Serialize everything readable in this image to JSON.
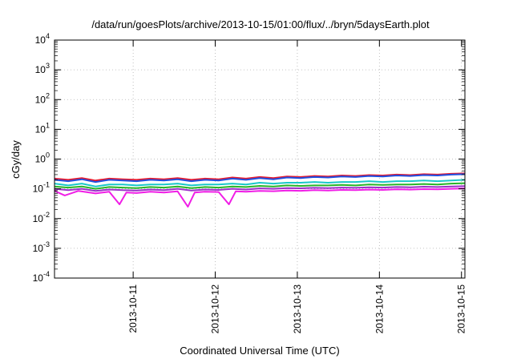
{
  "chart_data": {
    "type": "line",
    "title": "/data/run/goesPlots/archive/2013-10-15/01:00/flux/../bryn/5daysEarth.plot",
    "xlabel": "Coordinated Universal Time (UTC)",
    "ylabel": "cGy/day",
    "yscale": "log",
    "ylim": [
      0.0001,
      10000
    ],
    "xlim": [
      "2013-10-10T01:00",
      "2013-10-15T01:00"
    ],
    "grid": true,
    "x_ticks": [
      "2013-10-11",
      "2013-10-12",
      "2013-10-13",
      "2013-10-14",
      "2013-10-15"
    ],
    "y_ticks": [
      {
        "value": 0.0001,
        "base": "10",
        "exp": "-4"
      },
      {
        "value": 0.001,
        "base": "10",
        "exp": "-3"
      },
      {
        "value": 0.01,
        "base": "10",
        "exp": "-2"
      },
      {
        "value": 0.1,
        "base": "10",
        "exp": "-1"
      },
      {
        "value": 1,
        "base": "10",
        "exp": "0"
      },
      {
        "value": 10,
        "base": "10",
        "exp": "1"
      },
      {
        "value": 100,
        "base": "10",
        "exp": "2"
      },
      {
        "value": 1000,
        "base": "10",
        "exp": "3"
      },
      {
        "value": 10000,
        "base": "10",
        "exp": "4"
      }
    ],
    "series": [
      {
        "color": "#e8192c",
        "values": [
          [
            "2013-10-10T01:00",
            0.22
          ],
          [
            "2013-10-10T05:00",
            0.2
          ],
          [
            "2013-10-10T09:00",
            0.23
          ],
          [
            "2013-10-10T13:00",
            0.19
          ],
          [
            "2013-10-10T17:00",
            0.22
          ],
          [
            "2013-10-10T21:00",
            0.21
          ],
          [
            "2013-10-11T01:00",
            0.2
          ],
          [
            "2013-10-11T05:00",
            0.22
          ],
          [
            "2013-10-11T09:00",
            0.21
          ],
          [
            "2013-10-11T13:00",
            0.23
          ],
          [
            "2013-10-11T17:00",
            0.2
          ],
          [
            "2013-10-11T21:00",
            0.22
          ],
          [
            "2013-10-12T01:00",
            0.21
          ],
          [
            "2013-10-12T05:00",
            0.24
          ],
          [
            "2013-10-12T09:00",
            0.22
          ],
          [
            "2013-10-12T13:00",
            0.25
          ],
          [
            "2013-10-12T17:00",
            0.23
          ],
          [
            "2013-10-12T21:00",
            0.26
          ],
          [
            "2013-10-13T01:00",
            0.25
          ],
          [
            "2013-10-13T05:00",
            0.27
          ],
          [
            "2013-10-13T09:00",
            0.26
          ],
          [
            "2013-10-13T13:00",
            0.28
          ],
          [
            "2013-10-13T17:00",
            0.27
          ],
          [
            "2013-10-13T21:00",
            0.29
          ],
          [
            "2013-10-14T01:00",
            0.28
          ],
          [
            "2013-10-14T05:00",
            0.3
          ],
          [
            "2013-10-14T09:00",
            0.29
          ],
          [
            "2013-10-14T13:00",
            0.31
          ],
          [
            "2013-10-14T17:00",
            0.3
          ],
          [
            "2013-10-14T21:00",
            0.32
          ],
          [
            "2013-10-15T01:00",
            0.33
          ]
        ]
      },
      {
        "color": "#1f4fe0",
        "values": [
          [
            "2013-10-10T01:00",
            0.2
          ],
          [
            "2013-10-10T05:00",
            0.18
          ],
          [
            "2013-10-10T09:00",
            0.21
          ],
          [
            "2013-10-10T13:00",
            0.17
          ],
          [
            "2013-10-10T17:00",
            0.2
          ],
          [
            "2013-10-10T21:00",
            0.19
          ],
          [
            "2013-10-11T01:00",
            0.18
          ],
          [
            "2013-10-11T05:00",
            0.2
          ],
          [
            "2013-10-11T09:00",
            0.19
          ],
          [
            "2013-10-11T13:00",
            0.21
          ],
          [
            "2013-10-11T17:00",
            0.18
          ],
          [
            "2013-10-11T21:00",
            0.2
          ],
          [
            "2013-10-12T01:00",
            0.19
          ],
          [
            "2013-10-12T05:00",
            0.22
          ],
          [
            "2013-10-12T09:00",
            0.2
          ],
          [
            "2013-10-12T13:00",
            0.23
          ],
          [
            "2013-10-12T17:00",
            0.21
          ],
          [
            "2013-10-12T21:00",
            0.24
          ],
          [
            "2013-10-13T01:00",
            0.23
          ],
          [
            "2013-10-13T05:00",
            0.25
          ],
          [
            "2013-10-13T09:00",
            0.24
          ],
          [
            "2013-10-13T13:00",
            0.26
          ],
          [
            "2013-10-13T17:00",
            0.25
          ],
          [
            "2013-10-13T21:00",
            0.27
          ],
          [
            "2013-10-14T01:00",
            0.26
          ],
          [
            "2013-10-14T05:00",
            0.28
          ],
          [
            "2013-10-14T09:00",
            0.27
          ],
          [
            "2013-10-14T13:00",
            0.29
          ],
          [
            "2013-10-14T17:00",
            0.28
          ],
          [
            "2013-10-14T21:00",
            0.3
          ],
          [
            "2013-10-15T01:00",
            0.31
          ]
        ]
      },
      {
        "color": "#19c8c8",
        "values": [
          [
            "2013-10-10T01:00",
            0.15
          ],
          [
            "2013-10-10T05:00",
            0.13
          ],
          [
            "2013-10-10T09:00",
            0.15
          ],
          [
            "2013-10-10T13:00",
            0.12
          ],
          [
            "2013-10-10T17:00",
            0.14
          ],
          [
            "2013-10-10T21:00",
            0.14
          ],
          [
            "2013-10-11T01:00",
            0.13
          ],
          [
            "2013-10-11T05:00",
            0.14
          ],
          [
            "2013-10-11T09:00",
            0.14
          ],
          [
            "2013-10-11T13:00",
            0.15
          ],
          [
            "2013-10-11T17:00",
            0.13
          ],
          [
            "2013-10-11T21:00",
            0.14
          ],
          [
            "2013-10-12T01:00",
            0.14
          ],
          [
            "2013-10-12T05:00",
            0.15
          ],
          [
            "2013-10-12T09:00",
            0.14
          ],
          [
            "2013-10-12T13:00",
            0.16
          ],
          [
            "2013-10-12T17:00",
            0.15
          ],
          [
            "2013-10-12T21:00",
            0.16
          ],
          [
            "2013-10-13T01:00",
            0.16
          ],
          [
            "2013-10-13T05:00",
            0.17
          ],
          [
            "2013-10-13T09:00",
            0.16
          ],
          [
            "2013-10-13T13:00",
            0.17
          ],
          [
            "2013-10-13T17:00",
            0.17
          ],
          [
            "2013-10-13T21:00",
            0.18
          ],
          [
            "2013-10-14T01:00",
            0.17
          ],
          [
            "2013-10-14T05:00",
            0.18
          ],
          [
            "2013-10-14T09:00",
            0.18
          ],
          [
            "2013-10-14T13:00",
            0.19
          ],
          [
            "2013-10-14T17:00",
            0.18
          ],
          [
            "2013-10-14T21:00",
            0.19
          ],
          [
            "2013-10-15T01:00",
            0.2
          ]
        ]
      },
      {
        "color": "#28b428",
        "values": [
          [
            "2013-10-10T01:00",
            0.12
          ],
          [
            "2013-10-10T05:00",
            0.11
          ],
          [
            "2013-10-10T09:00",
            0.12
          ],
          [
            "2013-10-10T13:00",
            0.1
          ],
          [
            "2013-10-10T17:00",
            0.115
          ],
          [
            "2013-10-10T21:00",
            0.11
          ],
          [
            "2013-10-11T01:00",
            0.105
          ],
          [
            "2013-10-11T05:00",
            0.115
          ],
          [
            "2013-10-11T09:00",
            0.11
          ],
          [
            "2013-10-11T13:00",
            0.12
          ],
          [
            "2013-10-11T17:00",
            0.105
          ],
          [
            "2013-10-11T21:00",
            0.115
          ],
          [
            "2013-10-12T01:00",
            0.11
          ],
          [
            "2013-10-12T05:00",
            0.12
          ],
          [
            "2013-10-12T09:00",
            0.115
          ],
          [
            "2013-10-12T13:00",
            0.125
          ],
          [
            "2013-10-12T17:00",
            0.12
          ],
          [
            "2013-10-12T21:00",
            0.13
          ],
          [
            "2013-10-13T01:00",
            0.125
          ],
          [
            "2013-10-13T05:00",
            0.13
          ],
          [
            "2013-10-13T09:00",
            0.13
          ],
          [
            "2013-10-13T13:00",
            0.135
          ],
          [
            "2013-10-13T17:00",
            0.13
          ],
          [
            "2013-10-13T21:00",
            0.14
          ],
          [
            "2013-10-14T01:00",
            0.135
          ],
          [
            "2013-10-14T05:00",
            0.14
          ],
          [
            "2013-10-14T09:00",
            0.14
          ],
          [
            "2013-10-14T13:00",
            0.145
          ],
          [
            "2013-10-14T17:00",
            0.14
          ],
          [
            "2013-10-14T21:00",
            0.15
          ],
          [
            "2013-10-15T01:00",
            0.155
          ]
        ]
      },
      {
        "color": "#9b2fc8",
        "values": [
          [
            "2013-10-10T01:00",
            0.1
          ],
          [
            "2013-10-10T05:00",
            0.09
          ],
          [
            "2013-10-10T09:00",
            0.1
          ],
          [
            "2013-10-10T13:00",
            0.085
          ],
          [
            "2013-10-10T17:00",
            0.095
          ],
          [
            "2013-10-10T21:00",
            0.09
          ],
          [
            "2013-10-11T01:00",
            0.088
          ],
          [
            "2013-10-11T05:00",
            0.095
          ],
          [
            "2013-10-11T09:00",
            0.09
          ],
          [
            "2013-10-11T13:00",
            0.1
          ],
          [
            "2013-10-11T17:00",
            0.088
          ],
          [
            "2013-10-11T21:00",
            0.095
          ],
          [
            "2013-10-12T01:00",
            0.092
          ],
          [
            "2013-10-12T05:00",
            0.1
          ],
          [
            "2013-10-12T09:00",
            0.095
          ],
          [
            "2013-10-12T13:00",
            0.103
          ],
          [
            "2013-10-12T17:00",
            0.1
          ],
          [
            "2013-10-12T21:00",
            0.106
          ],
          [
            "2013-10-13T01:00",
            0.104
          ],
          [
            "2013-10-13T05:00",
            0.108
          ],
          [
            "2013-10-13T09:00",
            0.106
          ],
          [
            "2013-10-13T13:00",
            0.11
          ],
          [
            "2013-10-13T17:00",
            0.108
          ],
          [
            "2013-10-13T21:00",
            0.113
          ],
          [
            "2013-10-14T01:00",
            0.11
          ],
          [
            "2013-10-14T05:00",
            0.115
          ],
          [
            "2013-10-14T09:00",
            0.113
          ],
          [
            "2013-10-14T13:00",
            0.118
          ],
          [
            "2013-10-14T17:00",
            0.115
          ],
          [
            "2013-10-14T21:00",
            0.12
          ],
          [
            "2013-10-15T01:00",
            0.124
          ]
        ]
      },
      {
        "color": "#f01ee6",
        "values": [
          [
            "2013-10-10T01:00",
            0.085
          ],
          [
            "2013-10-10T04:00",
            0.06
          ],
          [
            "2013-10-10T08:00",
            0.085
          ],
          [
            "2013-10-10T13:00",
            0.07
          ],
          [
            "2013-10-10T17:00",
            0.08
          ],
          [
            "2013-10-10T20:00",
            0.03
          ],
          [
            "2013-10-10T22:00",
            0.075
          ],
          [
            "2013-10-11T01:00",
            0.072
          ],
          [
            "2013-10-11T05:00",
            0.08
          ],
          [
            "2013-10-11T09:00",
            0.075
          ],
          [
            "2013-10-11T13:00",
            0.082
          ],
          [
            "2013-10-11T16:00",
            0.025
          ],
          [
            "2013-10-11T18:00",
            0.075
          ],
          [
            "2013-10-11T21:00",
            0.08
          ],
          [
            "2013-10-12T01:00",
            0.078
          ],
          [
            "2013-10-12T04:00",
            0.03
          ],
          [
            "2013-10-12T06:00",
            0.082
          ],
          [
            "2013-10-12T09:00",
            0.08
          ],
          [
            "2013-10-12T13:00",
            0.085
          ],
          [
            "2013-10-12T17:00",
            0.083
          ],
          [
            "2013-10-12T21:00",
            0.088
          ],
          [
            "2013-10-13T01:00",
            0.086
          ],
          [
            "2013-10-13T05:00",
            0.09
          ],
          [
            "2013-10-13T09:00",
            0.088
          ],
          [
            "2013-10-13T13:00",
            0.092
          ],
          [
            "2013-10-13T17:00",
            0.09
          ],
          [
            "2013-10-13T21:00",
            0.094
          ],
          [
            "2013-10-14T01:00",
            0.092
          ],
          [
            "2013-10-14T05:00",
            0.096
          ],
          [
            "2013-10-14T09:00",
            0.094
          ],
          [
            "2013-10-14T13:00",
            0.098
          ],
          [
            "2013-10-14T17:00",
            0.096
          ],
          [
            "2013-10-14T21:00",
            0.1
          ],
          [
            "2013-10-15T01:00",
            0.103
          ]
        ]
      }
    ]
  }
}
